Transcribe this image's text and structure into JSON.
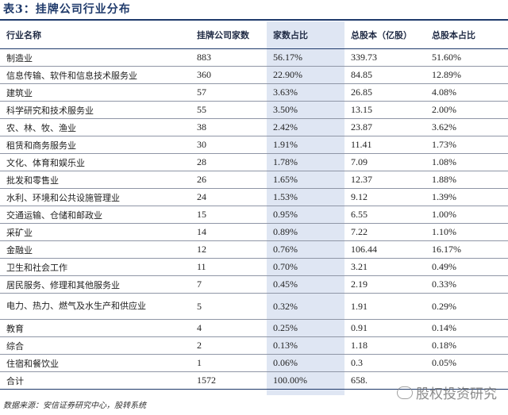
{
  "title": "表3：挂牌公司行业分布",
  "headers": [
    "行业名称",
    "挂牌公司家数",
    "家数占比",
    "总股本（亿股）",
    "总股本占比"
  ],
  "rows": [
    [
      "制造业",
      "883",
      "56.17%",
      "339.73",
      "51.60%"
    ],
    [
      "信息传输、软件和信息技术服务业",
      "360",
      "22.90%",
      "84.85",
      "12.89%"
    ],
    [
      "建筑业",
      "57",
      "3.63%",
      "26.85",
      "4.08%"
    ],
    [
      "科学研究和技术服务业",
      "55",
      "3.50%",
      "13.15",
      "2.00%"
    ],
    [
      "农、林、牧、渔业",
      "38",
      "2.42%",
      "23.87",
      "3.62%"
    ],
    [
      "租赁和商务服务业",
      "30",
      "1.91%",
      "11.41",
      "1.73%"
    ],
    [
      "文化、体育和娱乐业",
      "28",
      "1.78%",
      "7.09",
      "1.08%"
    ],
    [
      "批发和零售业",
      "26",
      "1.65%",
      "12.37",
      "1.88%"
    ],
    [
      "水利、环境和公共设施管理业",
      "24",
      "1.53%",
      "9.12",
      "1.39%"
    ],
    [
      "交通运输、仓储和邮政业",
      "15",
      "0.95%",
      "6.55",
      "1.00%"
    ],
    [
      "采矿业",
      "14",
      "0.89%",
      "7.22",
      "1.10%"
    ],
    [
      "金融业",
      "12",
      "0.76%",
      "106.44",
      "16.17%"
    ],
    [
      "卫生和社会工作",
      "11",
      "0.70%",
      "3.21",
      "0.49%"
    ],
    [
      "居民服务、修理和其他服务业",
      "7",
      "0.45%",
      "2.19",
      "0.33%"
    ],
    [
      "电力、热力、燃气及水生产和供应业",
      "5",
      "0.32%",
      "1.91",
      "0.29%"
    ],
    [
      "教育",
      "4",
      "0.25%",
      "0.91",
      "0.14%"
    ],
    [
      "综合",
      "2",
      "0.13%",
      "1.18",
      "0.18%"
    ],
    [
      "住宿和餐饮业",
      "1",
      "0.06%",
      "0.3",
      "0.05%"
    ],
    [
      "合计",
      "1572",
      "100.00%",
      "658.",
      ""
    ]
  ],
  "source": "数据来源：安信证券研究中心，股转系统",
  "watermark": "股权投资研究",
  "colors": {
    "title": "#1f3a6b",
    "highlight": "#dfe6f3"
  }
}
